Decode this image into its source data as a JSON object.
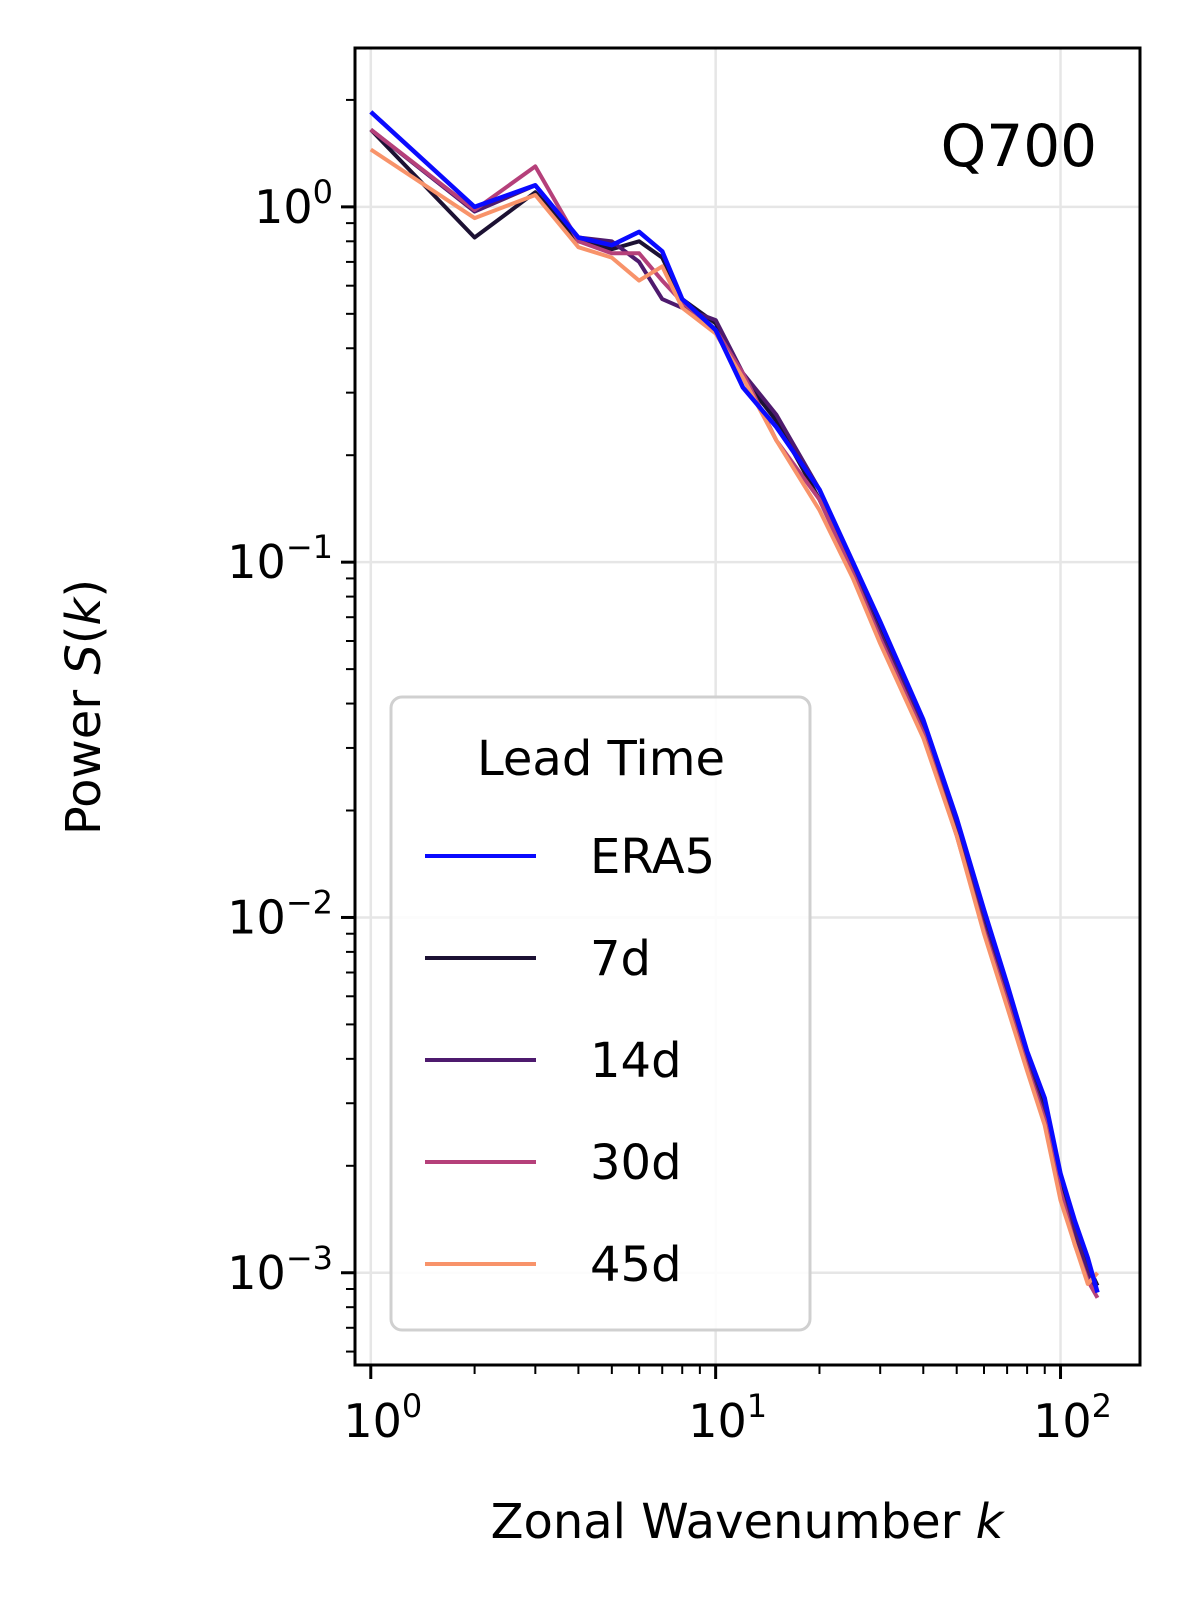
{
  "chart_data": {
    "type": "line",
    "annotation": "Q700",
    "xlabel": "Zonal Wavenumber k",
    "ylabel": "Power S(k)",
    "x_scale": "log",
    "y_scale": "log",
    "xlim": [
      0.9,
      170
    ],
    "ylim": [
      0.00055,
      2.8
    ],
    "grid": true,
    "x_ticks": [
      {
        "value": 1,
        "base": "10",
        "exp": "0"
      },
      {
        "value": 10,
        "base": "10",
        "exp": "1"
      },
      {
        "value": 100,
        "base": "10",
        "exp": "2"
      }
    ],
    "y_ticks": [
      {
        "value": 1,
        "base": "10",
        "exp": "0"
      },
      {
        "value": 0.1,
        "base": "10",
        "exp": "−1"
      },
      {
        "value": 0.01,
        "base": "10",
        "exp": "−2"
      },
      {
        "value": 0.001,
        "base": "10",
        "exp": "−3"
      }
    ],
    "legend": {
      "title": "Lead Time",
      "position": "lower-left"
    },
    "x": [
      1,
      2,
      3,
      4,
      5,
      6,
      7,
      8,
      10,
      12,
      15,
      20,
      25,
      30,
      40,
      50,
      60,
      70,
      80,
      90,
      100,
      110,
      120,
      128
    ],
    "series": [
      {
        "name": "ERA5",
        "color": "#0a0aff",
        "values": [
          1.85,
          1.0,
          1.15,
          0.82,
          0.78,
          0.85,
          0.75,
          0.55,
          0.45,
          0.31,
          0.24,
          0.16,
          0.1,
          0.068,
          0.036,
          0.019,
          0.0105,
          0.0065,
          0.0042,
          0.0031,
          0.0019,
          0.0014,
          0.0011,
          0.00088
        ]
      },
      {
        "name": "7d",
        "color": "#1c1133",
        "values": [
          1.65,
          0.82,
          1.1,
          0.8,
          0.76,
          0.8,
          0.72,
          0.55,
          0.47,
          0.33,
          0.25,
          0.15,
          0.095,
          0.064,
          0.034,
          0.018,
          0.0098,
          0.006,
          0.004,
          0.0029,
          0.0018,
          0.0013,
          0.00105,
          0.00092
        ]
      },
      {
        "name": "14d",
        "color": "#4e1a6e",
        "values": [
          1.65,
          0.97,
          1.15,
          0.82,
          0.8,
          0.7,
          0.55,
          0.52,
          0.48,
          0.34,
          0.26,
          0.16,
          0.094,
          0.063,
          0.034,
          0.018,
          0.0095,
          0.006,
          0.0039,
          0.0028,
          0.0017,
          0.0013,
          0.001,
          0.00088
        ]
      },
      {
        "name": "30d",
        "color": "#b5407a",
        "values": [
          1.65,
          0.98,
          1.3,
          0.8,
          0.74,
          0.74,
          0.62,
          0.54,
          0.45,
          0.34,
          0.22,
          0.15,
          0.093,
          0.061,
          0.033,
          0.017,
          0.0092,
          0.0058,
          0.0038,
          0.0027,
          0.0017,
          0.0012,
          0.00095,
          0.00085
        ]
      },
      {
        "name": "45d",
        "color": "#f8936a",
        "values": [
          1.45,
          0.93,
          1.08,
          0.77,
          0.72,
          0.62,
          0.68,
          0.52,
          0.44,
          0.33,
          0.22,
          0.14,
          0.09,
          0.059,
          0.032,
          0.017,
          0.009,
          0.0056,
          0.0037,
          0.0026,
          0.0016,
          0.0012,
          0.00093,
          0.001
        ]
      }
    ]
  }
}
